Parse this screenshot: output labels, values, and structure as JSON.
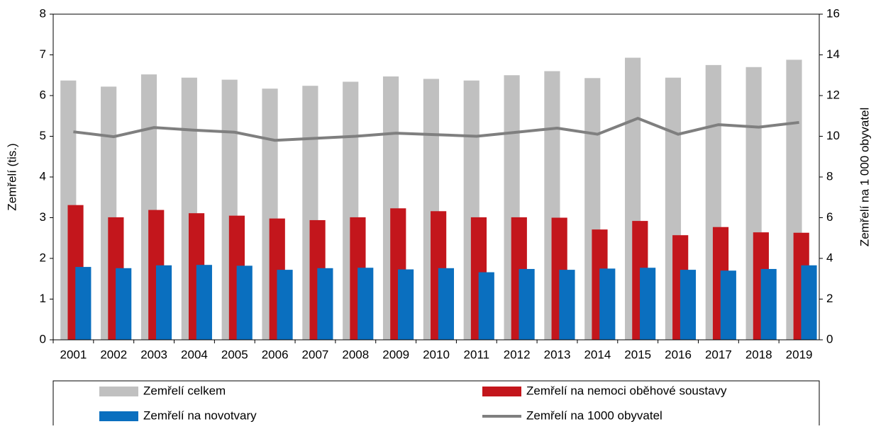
{
  "chart_data": {
    "type": "bar",
    "y_label": "Zemřelí (tis.)",
    "y2_label": "Zemřelí na 1 000 obyvatel",
    "categories": [
      "2001",
      "2002",
      "2003",
      "2004",
      "2005",
      "2006",
      "2007",
      "2008",
      "2009",
      "2010",
      "2011",
      "2012",
      "2013",
      "2014",
      "2015",
      "2016",
      "2017",
      "2018",
      "2019"
    ],
    "ylim": [
      0,
      8
    ],
    "yticks": [
      0,
      1,
      2,
      3,
      4,
      5,
      6,
      7,
      8
    ],
    "y2lim": [
      0,
      16
    ],
    "y2ticks": [
      0,
      2,
      4,
      6,
      8,
      10,
      12,
      14,
      16
    ],
    "series": [
      {
        "name": "Zemřelí celkem",
        "color": "#c0c0c0",
        "values": [
          6.37,
          6.22,
          6.52,
          6.44,
          6.39,
          6.17,
          6.24,
          6.34,
          6.47,
          6.41,
          6.37,
          6.5,
          6.6,
          6.43,
          6.93,
          6.44,
          6.75,
          6.7,
          6.88
        ]
      },
      {
        "name": "Zemřelí na nemoci oběhové soustavy",
        "color": "#c3161c",
        "values": [
          3.31,
          3.01,
          3.19,
          3.11,
          3.05,
          2.98,
          2.94,
          3.01,
          3.23,
          3.16,
          3.01,
          3.01,
          3.0,
          2.71,
          2.92,
          2.57,
          2.77,
          2.64,
          2.63
        ]
      },
      {
        "name": "Zemřelí na novotvary",
        "color": "#0a6fbf",
        "values": [
          1.79,
          1.76,
          1.83,
          1.84,
          1.82,
          1.72,
          1.76,
          1.77,
          1.73,
          1.76,
          1.66,
          1.74,
          1.72,
          1.75,
          1.77,
          1.72,
          1.7,
          1.74,
          1.83
        ]
      },
      {
        "name": "Zemřelí na 1000 obyvatel",
        "color": "#7f7f7f",
        "type": "line",
        "axis": "y2",
        "values": [
          10.22,
          9.98,
          10.43,
          10.3,
          10.2,
          9.8,
          9.9,
          10.0,
          10.15,
          10.08,
          10.0,
          10.2,
          10.4,
          10.1,
          10.88,
          10.1,
          10.57,
          10.45,
          10.68
        ]
      }
    ]
  }
}
